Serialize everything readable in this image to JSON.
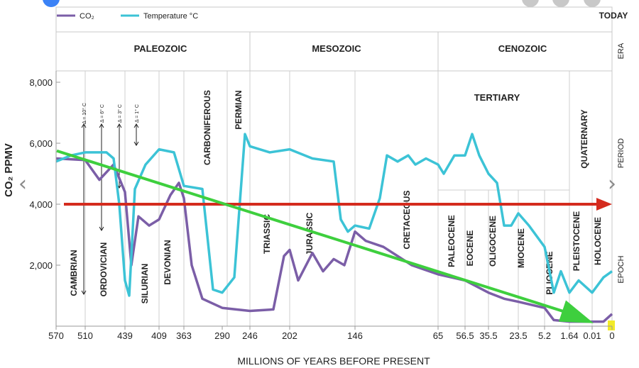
{
  "chart_data": {
    "type": "line",
    "title": "",
    "xlabel": "MILLIONS OF YEARS BEFORE PRESENT",
    "ylabel": "CO₂ PPMV",
    "ylim": [
      0,
      8000
    ],
    "yticks": [
      {
        "value": 2000,
        "label": "2,000"
      },
      {
        "value": 4000,
        "label": "4,000"
      },
      {
        "value": 6000,
        "label": "6,000"
      },
      {
        "value": 8000,
        "label": "8,000"
      }
    ],
    "xticks": [
      "570",
      "510",
      "439",
      "409",
      "363",
      "290",
      "246",
      "202",
      "146",
      "65",
      "56.5",
      "35.5",
      "23.5",
      "5.2",
      "1.64",
      "0.01",
      "0"
    ],
    "legend": [
      {
        "name": "CO₂",
        "color": "#7b5ea7"
      },
      {
        "name": "Temperature °C",
        "color": "#3cc3d6"
      }
    ],
    "legend_position": "top-left",
    "row_labels": {
      "today": "TODAY",
      "era": "ERA",
      "period": "PERIOD",
      "epoch": "EPOCH"
    },
    "eras": [
      {
        "name": "PALEOZOIC",
        "from": "570",
        "to": "246"
      },
      {
        "name": "MESOZOIC",
        "from": "246",
        "to": "65"
      },
      {
        "name": "CENOZOIC",
        "from": "65",
        "to": "0"
      }
    ],
    "periods": [
      "CAMBRIAN",
      "ORDOVICIAN",
      "SILURIAN",
      "DEVONIAN",
      "CARBONIFEROUS",
      "PERMIAN",
      "TRIASSIC",
      "JURASSIC",
      "CRETACEOUS",
      "TERTIARY",
      "QUATERNARY"
    ],
    "epochs": [
      "PALEOCENE",
      "EOCENE",
      "OLIGOCENE",
      "MIOCENE",
      "PLIOCENE",
      "PLEISTOCENE",
      "HOLOCENE"
    ],
    "temperature_deltas": [
      "Δ = 10° C",
      "Δ = 6° C",
      "Δ = 3° C",
      "Δ = 1° C"
    ],
    "series": [
      {
        "name": "CO₂",
        "color": "#7b5ea7",
        "x": [
          "570",
          "510",
          "439",
          "409",
          "363",
          "290",
          "246",
          "202",
          "146",
          "65",
          "56.5",
          "35.5",
          "23.5",
          "5.2",
          "1.64",
          "0.01",
          "0"
        ],
        "values": [
          5600,
          5500,
          1000,
          3400,
          4300,
          600,
          500,
          2400,
          3100,
          1700,
          1500,
          1100,
          800,
          600,
          150,
          150,
          400
        ]
      },
      {
        "name": "Temperature °C",
        "color": "#3cc3d6",
        "x": [
          "570",
          "510",
          "439",
          "409",
          "363",
          "290",
          "246",
          "202",
          "146",
          "65",
          "56.5",
          "35.5",
          "23.5",
          "5.2",
          "1.64",
          "0.01",
          "0"
        ],
        "values": [
          5500,
          5650,
          900,
          5700,
          4500,
          1200,
          6300,
          5700,
          3100,
          5100,
          6300,
          2900,
          3600,
          2600,
          1000,
          1100,
          1800
        ]
      }
    ],
    "annotations": [
      {
        "type": "horizontal-arrow",
        "value": 4000,
        "color": "#d42b1e"
      },
      {
        "type": "trend-arrow",
        "color": "#3ecf3e"
      }
    ]
  }
}
